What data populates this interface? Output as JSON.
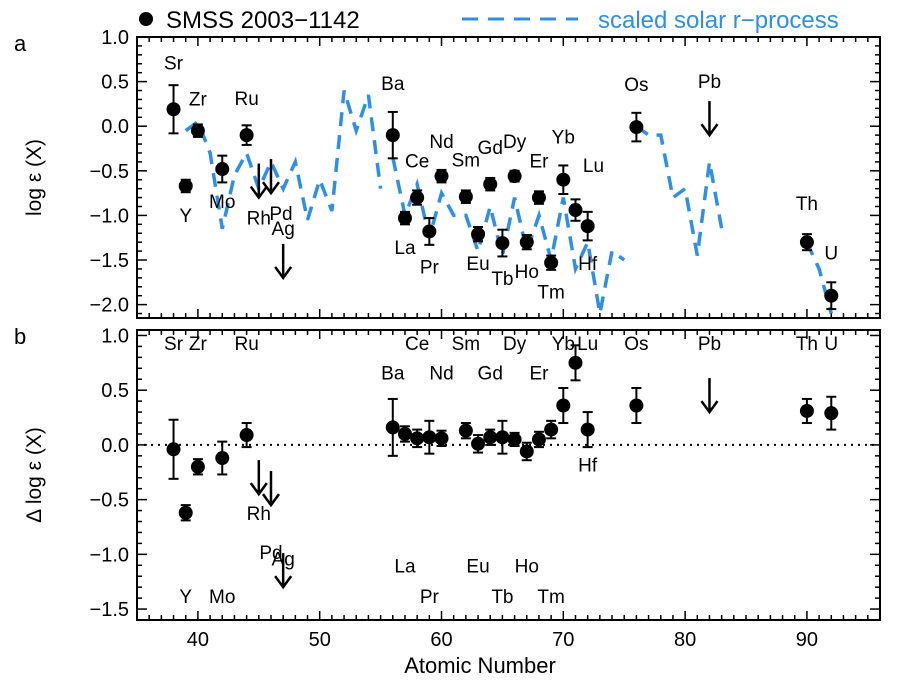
{
  "legend": {
    "star_label": "SMSS 2003−1142",
    "model_label": "scaled solar r−process"
  },
  "colors": {
    "model": "#2F8FE8",
    "data": "#000000"
  },
  "x_axis": {
    "label": "Atomic Number",
    "range": [
      35,
      96
    ],
    "ticks": [
      40,
      50,
      60,
      70,
      80,
      90
    ]
  },
  "chart_data": [
    {
      "type": "scatter",
      "panel_label": "a",
      "ylabel": "log ε (X)",
      "ylim": [
        -2.15,
        1.0
      ],
      "yticks": [
        -2.0,
        -1.5,
        -1.0,
        -0.5,
        0.0,
        0.5,
        1.0
      ],
      "grid": false,
      "legend_position": "top",
      "series": [
        {
          "name": "SMSS 2003−1142",
          "points": [
            {
              "el": "Sr",
              "z": 38,
              "y": 0.19,
              "err": 0.27,
              "lp": "above",
              "lo": 40
            },
            {
              "el": "Y",
              "z": 39,
              "y": -0.67,
              "err": 0.07,
              "lp": "below",
              "lo": 30
            },
            {
              "el": "Zr",
              "z": 40,
              "y": -0.05,
              "err": 0.07,
              "lp": "above",
              "lo": 25
            },
            {
              "el": "Mo",
              "z": 42,
              "y": -0.48,
              "err": 0.15,
              "lp": "below",
              "lo": 33
            },
            {
              "el": "Ru",
              "z": 44,
              "y": -0.1,
              "err": 0.11,
              "lp": "above",
              "lo": 30
            },
            {
              "el": "Ba",
              "z": 56,
              "y": -0.1,
              "err": 0.26,
              "lp": "above",
              "lo": 45
            },
            {
              "el": "La",
              "z": 57,
              "y": -1.03,
              "err": 0.07,
              "lp": "below",
              "lo": 30
            },
            {
              "el": "Ce",
              "z": 58,
              "y": -0.8,
              "err": 0.08,
              "lp": "above",
              "lo": 30
            },
            {
              "el": "Pr",
              "z": 59,
              "y": -1.18,
              "err": 0.15,
              "lp": "below",
              "lo": 36
            },
            {
              "el": "Nd",
              "z": 60,
              "y": -0.56,
              "err": 0.07,
              "lp": "above",
              "lo": 28
            },
            {
              "el": "Sm",
              "z": 62,
              "y": -0.79,
              "err": 0.07,
              "lp": "above",
              "lo": 30
            },
            {
              "el": "Eu",
              "z": 63,
              "y": -1.21,
              "err": 0.08,
              "lp": "below",
              "lo": 30
            },
            {
              "el": "Gd",
              "z": 64,
              "y": -0.65,
              "err": 0.07,
              "lp": "above",
              "lo": 30
            },
            {
              "el": "Tb",
              "z": 65,
              "y": -1.31,
              "err": 0.15,
              "lp": "below",
              "lo": 36
            },
            {
              "el": "Dy",
              "z": 66,
              "y": -0.56,
              "err": 0.06,
              "lp": "above",
              "lo": 28
            },
            {
              "el": "Ho",
              "z": 67,
              "y": -1.3,
              "err": 0.08,
              "lp": "below",
              "lo": 30
            },
            {
              "el": "Er",
              "z": 68,
              "y": -0.8,
              "err": 0.07,
              "lp": "above",
              "lo": 30
            },
            {
              "el": "Tm",
              "z": 69,
              "y": -1.53,
              "err": 0.08,
              "lp": "below",
              "lo": 30
            },
            {
              "el": "Yb",
              "z": 70,
              "y": -0.6,
              "err": 0.16,
              "lp": "above",
              "lo": 36
            },
            {
              "el": "Lu",
              "z": 71,
              "y": -0.94,
              "err": 0.12,
              "lp": "above",
              "lo": 38,
              "dx": 18
            },
            {
              "el": "Hf",
              "z": 72,
              "y": -1.12,
              "err": 0.16,
              "lp": "below",
              "lo": 38
            },
            {
              "el": "Os",
              "z": 76,
              "y": -0.01,
              "err": 0.16,
              "lp": "above",
              "lo": 36
            },
            {
              "el": "Th",
              "z": 90,
              "y": -1.3,
              "err": 0.09,
              "lp": "above",
              "lo": 32
            },
            {
              "el": "U",
              "z": 92,
              "y": -1.9,
              "err": 0.15,
              "lp": "above",
              "lo": 36
            }
          ],
          "upper_limits": [
            {
              "el": "Rh",
              "z": 45,
              "y": -0.8,
              "lp": "below",
              "lo": 27
            },
            {
              "el": "Pd",
              "z": 46,
              "y": -0.75,
              "lp": "below",
              "lo": 27,
              "dx": 10
            },
            {
              "el": "Ag",
              "z": 47,
              "y": -1.7,
              "lp": "above",
              "lo": 9
            },
            {
              "el": "Pb",
              "z": 82,
              "y": -0.1,
              "lp": "above",
              "lo": 13
            }
          ]
        },
        {
          "name": "scaled solar r−process",
          "segments": [
            [
              [
                39.0,
                -0.05
              ],
              [
                40.0,
                0.05
              ],
              [
                41.0,
                -0.3
              ],
              [
                42.0,
                -1.15
              ],
              [
                43.0,
                -0.55
              ],
              [
                44.0,
                -0.3
              ],
              [
                45.0,
                -0.7
              ],
              [
                46.0,
                -0.4
              ],
              [
                47.0,
                -0.7
              ],
              [
                48.0,
                -0.4
              ],
              [
                49.0,
                -1.05
              ],
              [
                50.0,
                -0.6
              ],
              [
                51.0,
                -0.95
              ],
              [
                52.0,
                0.4
              ],
              [
                53.0,
                -0.05
              ],
              [
                54.0,
                0.35
              ],
              [
                55.0,
                -0.7
              ]
            ],
            [
              [
                56.0,
                -0.35
              ],
              [
                57.0,
                -1.0
              ],
              [
                58.0,
                -0.65
              ],
              [
                59.0,
                -1.25
              ],
              [
                60.0,
                -0.75
              ],
              [
                61.0,
                -1.0
              ],
              [
                62.0,
                -1.0
              ],
              [
                63.0,
                -1.4
              ],
              [
                64.0,
                -0.9
              ],
              [
                65.0,
                -1.45
              ],
              [
                66.0,
                -0.8
              ],
              [
                67.0,
                -1.4
              ],
              [
                68.0,
                -1.0
              ],
              [
                69.0,
                -1.5
              ],
              [
                70.0,
                -0.8
              ],
              [
                71.0,
                -1.6
              ],
              [
                72.0,
                -1.3
              ],
              [
                73.0,
                -2.1
              ],
              [
                74.0,
                -1.4
              ],
              [
                75.0,
                -1.5
              ]
            ],
            [
              [
                76.0,
                0.0
              ],
              [
                77.0,
                -0.1
              ],
              [
                78.0,
                -0.1
              ],
              [
                79.0,
                -0.8
              ],
              [
                80.0,
                -0.7
              ],
              [
                81.0,
                -1.45
              ],
              [
                82.0,
                -0.4
              ],
              [
                83.0,
                -1.15
              ]
            ],
            [
              [
                90.0,
                -1.3
              ],
              [
                91.0,
                -1.6
              ],
              [
                92.0,
                -2.1
              ]
            ]
          ]
        }
      ]
    },
    {
      "type": "scatter",
      "panel_label": "b",
      "ylabel": "Δ log ε (X)",
      "ylim": [
        -1.6,
        1.05
      ],
      "yticks": [
        -1.5,
        -1.0,
        -0.5,
        0.0,
        0.5,
        1.0
      ],
      "grid": false,
      "reference_line": 0.0,
      "series": [
        {
          "name": "SMSS 2003−1142",
          "points": [
            {
              "el": "Sr",
              "z": 38,
              "y": -0.04,
              "err": 0.27
            },
            {
              "el": "Y",
              "z": 39,
              "y": -0.62,
              "err": 0.07
            },
            {
              "el": "Zr",
              "z": 40,
              "y": -0.2,
              "err": 0.07
            },
            {
              "el": "Mo",
              "z": 42,
              "y": -0.12,
              "err": 0.15
            },
            {
              "el": "Ru",
              "z": 44,
              "y": 0.09,
              "err": 0.11
            },
            {
              "el": "Ba",
              "z": 56,
              "y": 0.16,
              "err": 0.26
            },
            {
              "el": "La",
              "z": 57,
              "y": 0.1,
              "err": 0.07
            },
            {
              "el": "Ce",
              "z": 58,
              "y": 0.06,
              "err": 0.08
            },
            {
              "el": "Pr",
              "z": 59,
              "y": 0.07,
              "err": 0.15
            },
            {
              "el": "Nd",
              "z": 60,
              "y": 0.06,
              "err": 0.07
            },
            {
              "el": "Sm",
              "z": 62,
              "y": 0.13,
              "err": 0.07
            },
            {
              "el": "Eu",
              "z": 63,
              "y": 0.01,
              "err": 0.08
            },
            {
              "el": "Gd",
              "z": 64,
              "y": 0.07,
              "err": 0.07
            },
            {
              "el": "Tb",
              "z": 65,
              "y": 0.07,
              "err": 0.15
            },
            {
              "el": "Dy",
              "z": 66,
              "y": 0.05,
              "err": 0.06
            },
            {
              "el": "Ho",
              "z": 67,
              "y": -0.06,
              "err": 0.08
            },
            {
              "el": "Er",
              "z": 68,
              "y": 0.05,
              "err": 0.07
            },
            {
              "el": "Tm",
              "z": 69,
              "y": 0.14,
              "err": 0.08
            },
            {
              "el": "Yb",
              "z": 70,
              "y": 0.36,
              "err": 0.16
            },
            {
              "el": "Lu",
              "z": 71,
              "y": 0.75,
              "err": 0.16
            },
            {
              "el": "Hf",
              "z": 72,
              "y": 0.14,
              "err": 0.16
            },
            {
              "el": "Os",
              "z": 76,
              "y": 0.36,
              "err": 0.16
            },
            {
              "el": "Th",
              "z": 90,
              "y": 0.31,
              "err": 0.11
            },
            {
              "el": "U",
              "z": 92,
              "y": 0.29,
              "err": 0.15
            }
          ],
          "upper_limits": [
            {
              "el": "Rh",
              "z": 45,
              "y": -0.45
            },
            {
              "el": "Pd",
              "z": 46,
              "y": -0.55
            },
            {
              "el": "Ag",
              "z": 47,
              "y": -1.3
            },
            {
              "el": "Pb",
              "z": 82,
              "y": 0.3
            }
          ]
        }
      ],
      "labels": [
        {
          "el": "Sr",
          "z": 38,
          "y": 0.93
        },
        {
          "el": "Zr",
          "z": 40,
          "y": 0.93
        },
        {
          "el": "Ru",
          "z": 44,
          "y": 0.93
        },
        {
          "el": "Ce",
          "z": 58,
          "y": 0.93
        },
        {
          "el": "Sm",
          "z": 62,
          "y": 0.93
        },
        {
          "el": "Dy",
          "z": 66,
          "y": 0.93
        },
        {
          "el": "Yb",
          "z": 70,
          "y": 0.93
        },
        {
          "el": "Lu",
          "z": 72,
          "y": 0.93
        },
        {
          "el": "Os",
          "z": 76,
          "y": 0.93
        },
        {
          "el": "Pb",
          "z": 82,
          "y": 0.93
        },
        {
          "el": "Th",
          "z": 90,
          "y": 0.93
        },
        {
          "el": "U",
          "z": 92,
          "y": 0.93
        },
        {
          "el": "Ba",
          "z": 56,
          "y": 0.66
        },
        {
          "el": "Nd",
          "z": 60,
          "y": 0.66
        },
        {
          "el": "Gd",
          "z": 64,
          "y": 0.66
        },
        {
          "el": "Er",
          "z": 68,
          "y": 0.66
        },
        {
          "el": "Hf",
          "z": 72,
          "y": -0.18
        },
        {
          "el": "Rh",
          "z": 45,
          "y": -0.62
        },
        {
          "el": "Pd",
          "z": 46,
          "y": -0.98
        },
        {
          "el": "Ag",
          "z": 47,
          "y": -1.04
        },
        {
          "el": "La",
          "z": 57,
          "y": -1.1
        },
        {
          "el": "Eu",
          "z": 63,
          "y": -1.1
        },
        {
          "el": "Ho",
          "z": 67,
          "y": -1.1
        },
        {
          "el": "Y",
          "z": 39,
          "y": -1.38
        },
        {
          "el": "Mo",
          "z": 42,
          "y": -1.38
        },
        {
          "el": "Pr",
          "z": 59,
          "y": -1.38
        },
        {
          "el": "Tb",
          "z": 65,
          "y": -1.38
        },
        {
          "el": "Tm",
          "z": 69,
          "y": -1.38
        }
      ]
    }
  ]
}
